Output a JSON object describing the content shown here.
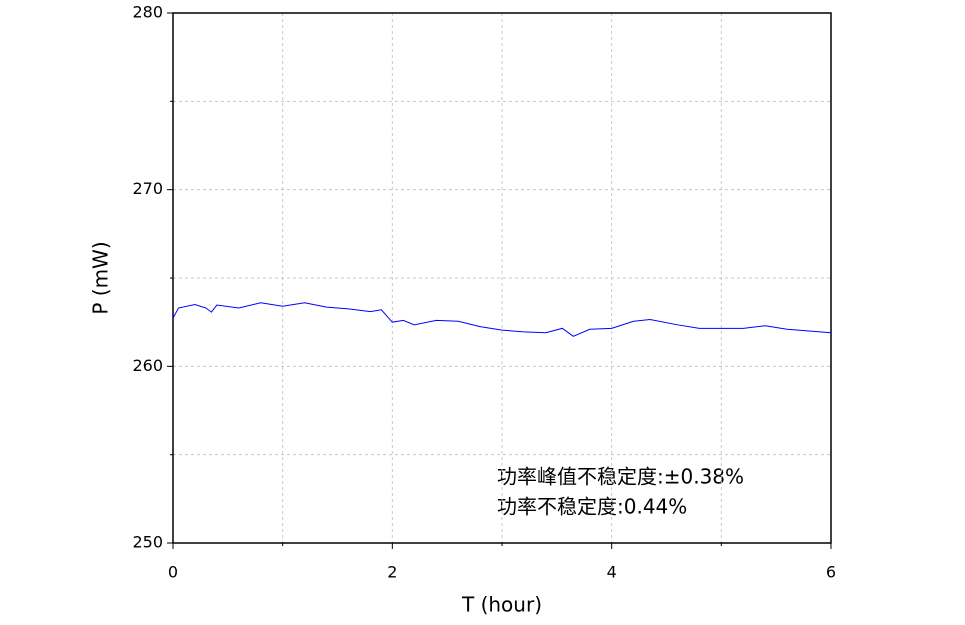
{
  "chart_data": {
    "type": "line",
    "x_label": "T (hour)",
    "y_label": "P (mW)",
    "x": [
      0,
      0.05,
      0.2,
      0.3,
      0.35,
      0.4,
      0.6,
      0.8,
      1.0,
      1.2,
      1.4,
      1.6,
      1.8,
      1.9,
      2.0,
      2.1,
      2.2,
      2.4,
      2.6,
      2.8,
      3.0,
      3.2,
      3.4,
      3.55,
      3.65,
      3.8,
      4.0,
      4.2,
      4.35,
      4.6,
      4.8,
      5.0,
      5.2,
      5.4,
      5.6,
      5.8,
      6.0
    ],
    "series": [
      {
        "color": "#0000ff",
        "values": [
          262.73,
          263.3,
          263.5,
          263.3,
          263.07,
          263.47,
          263.3,
          263.6,
          263.4,
          263.6,
          263.35,
          263.25,
          263.1,
          263.2,
          262.5,
          262.6,
          262.35,
          262.6,
          262.55,
          262.25,
          262.05,
          261.95,
          261.9,
          262.15,
          261.7,
          262.1,
          262.15,
          262.55,
          262.65,
          262.35,
          262.15,
          262.15,
          262.15,
          262.3,
          262.1,
          262.0,
          261.9
        ]
      }
    ],
    "xlim": [
      0,
      6
    ],
    "ylim": [
      250,
      280
    ],
    "xticks": [
      0,
      2,
      4,
      6
    ],
    "yticks": [
      250,
      260,
      270,
      280
    ],
    "minor_xticks": [
      1,
      3,
      5
    ],
    "minor_yticks": [
      255,
      265,
      275
    ],
    "grid": true,
    "annotations": [
      "功率峰值不稳定度:±0.38%",
      "功率不稳定度:0.44%"
    ]
  }
}
